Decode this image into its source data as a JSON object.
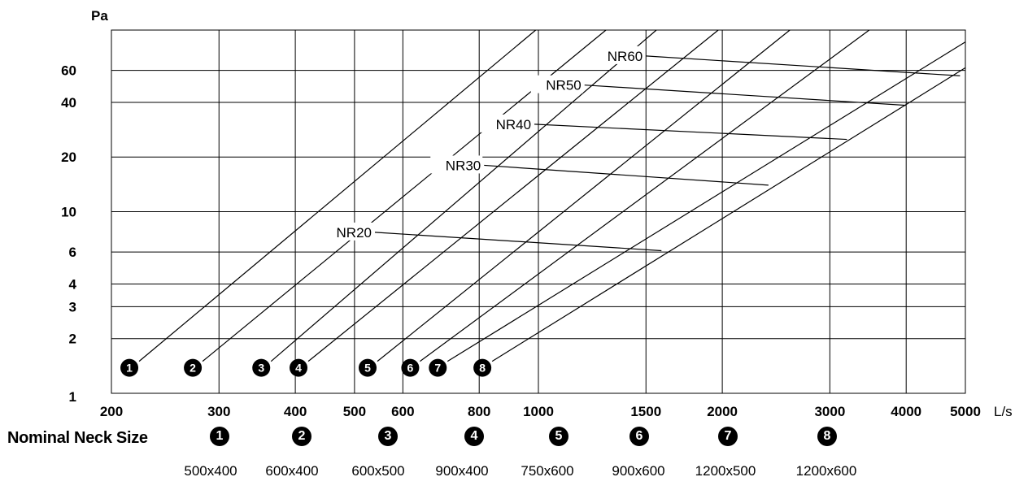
{
  "chart_data": {
    "type": "line",
    "x_unit": "L/s",
    "y_unit": "Pa",
    "x_scale": "log",
    "y_scale": "log",
    "xlim": [
      200,
      5000
    ],
    "ylim": [
      1,
      100
    ],
    "grid": true,
    "x_ticks": [
      {
        "value": 200,
        "label": "200"
      },
      {
        "value": 300,
        "label": "300"
      },
      {
        "value": 400,
        "label": "400"
      },
      {
        "value": 500,
        "label": "500"
      },
      {
        "value": 600,
        "label": "600"
      },
      {
        "value": 800,
        "label": "800"
      },
      {
        "value": 1000,
        "label": "1000"
      },
      {
        "value": 1500,
        "label": "1500"
      },
      {
        "value": 2000,
        "label": "2000"
      },
      {
        "value": 3000,
        "label": "3000"
      },
      {
        "value": 4000,
        "label": "4000"
      },
      {
        "value": 5000,
        "label": "5000"
      }
    ],
    "y_ticks": [
      {
        "value": 1,
        "label": "1"
      },
      {
        "value": 2,
        "label": "2"
      },
      {
        "value": 3,
        "label": "3"
      },
      {
        "value": 4,
        "label": "4"
      },
      {
        "value": 6,
        "label": "6"
      },
      {
        "value": 10,
        "label": "10"
      },
      {
        "value": 20,
        "label": "20"
      },
      {
        "value": 40,
        "label": "40"
      },
      {
        "value": 60,
        "label": "60"
      }
    ],
    "series": [
      {
        "marker": "1",
        "start": [
          222,
          1.5
        ],
        "end": [
          990,
          100
        ]
      },
      {
        "marker": "2",
        "start": [
          282,
          1.5
        ],
        "end": [
          1290,
          100
        ]
      },
      {
        "marker": "3",
        "start": [
          365,
          1.5
        ],
        "end": [
          1560,
          100
        ]
      },
      {
        "marker": "4",
        "start": [
          420,
          1.5
        ],
        "end": [
          1970,
          100
        ]
      },
      {
        "marker": "5",
        "start": [
          545,
          1.5
        ],
        "end": [
          2580,
          100
        ]
      },
      {
        "marker": "6",
        "start": [
          640,
          1.5
        ],
        "end": [
          3480,
          100
        ]
      },
      {
        "marker": "7",
        "start": [
          710,
          1.5
        ],
        "end": [
          5000,
          86
        ]
      },
      {
        "marker": "8",
        "start": [
          840,
          1.5
        ],
        "end": [
          5000,
          62
        ]
      }
    ],
    "nr_lines": [
      {
        "label": "NR20",
        "start": [
          540,
          7.7
        ],
        "end": [
          1590,
          6.1
        ]
      },
      {
        "label": "NR30",
        "start": [
          815,
          18.0
        ],
        "end": [
          2380,
          14.0
        ]
      },
      {
        "label": "NR40",
        "start": [
          985,
          30.3
        ],
        "end": [
          3200,
          25.0
        ]
      },
      {
        "label": "NR50",
        "start": [
          1190,
          49.8
        ],
        "end": [
          4000,
          38.5
        ]
      },
      {
        "label": "NR60",
        "start": [
          1500,
          72.0
        ],
        "end": [
          4900,
          56.0
        ]
      }
    ]
  },
  "legend": {
    "title": "Nominal Neck Size",
    "items": [
      {
        "marker": "1",
        "size": "500x400"
      },
      {
        "marker": "2",
        "size": "600x400"
      },
      {
        "marker": "3",
        "size": "600x500"
      },
      {
        "marker": "4",
        "size": "900x400"
      },
      {
        "marker": "5",
        "size": "750x600"
      },
      {
        "marker": "6",
        "size": "900x600"
      },
      {
        "marker": "7",
        "size": "1200x500"
      },
      {
        "marker": "8",
        "size": "1200x600"
      }
    ]
  }
}
